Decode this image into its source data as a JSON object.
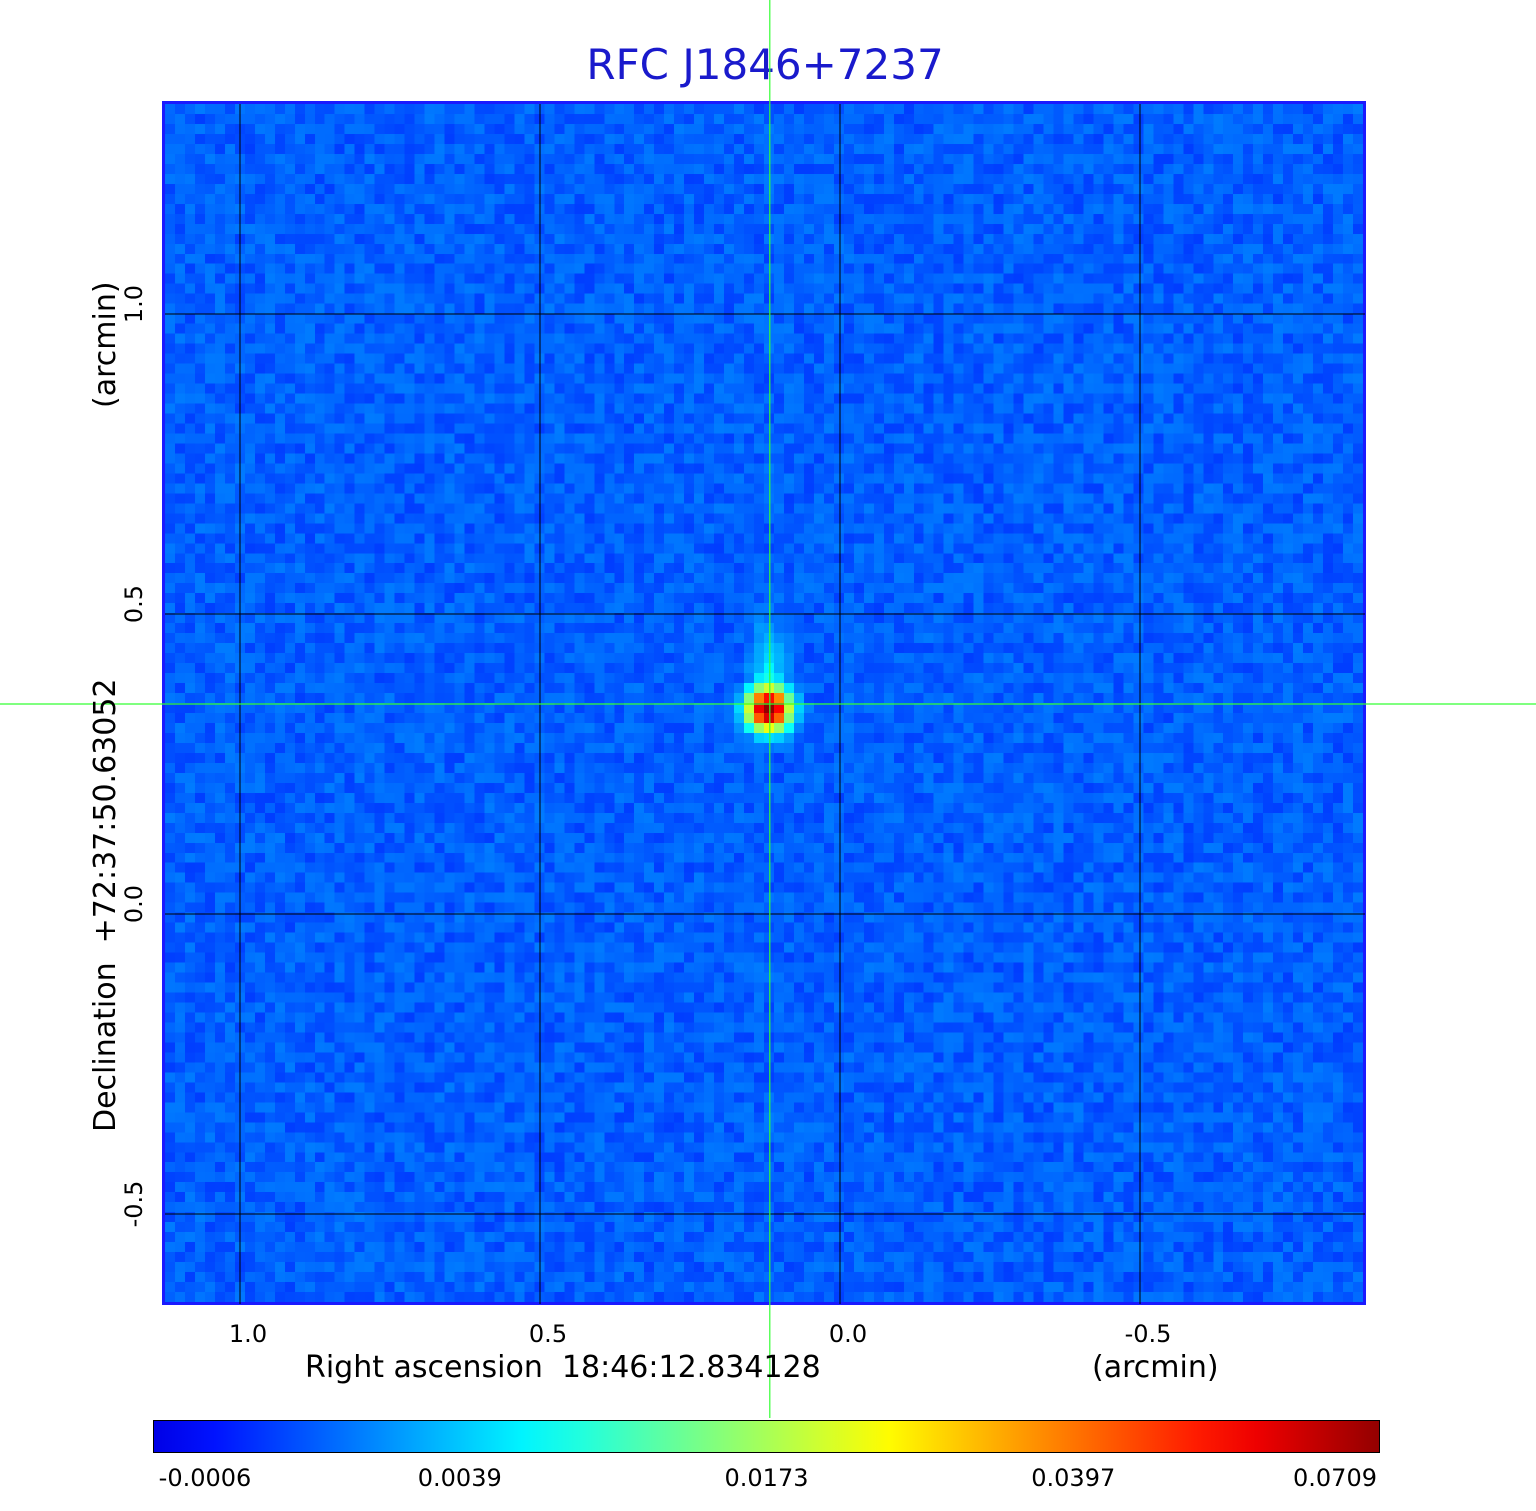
{
  "chart_data": {
    "type": "heatmap",
    "title": "RFC J1846+7237",
    "xlabel": "Right ascension  18:46:12.834128",
    "xunit": "(arcmin)",
    "ylabel": "Declination  +72:37:50.63052",
    "yunit": "(arcmin)",
    "xlim": [
      1.125,
      -0.875
    ],
    "ylim": [
      -0.65,
      1.35
    ],
    "x_ticks": [
      1.0,
      0.5,
      0.0,
      -0.5
    ],
    "x_tick_labels": [
      "1.0",
      "0.5",
      "0.0",
      "-0.5"
    ],
    "y_ticks": [
      1.0,
      0.5,
      0.0,
      -0.5
    ],
    "y_tick_labels": [
      "1.0",
      "0.5",
      "0.0",
      "-0.5"
    ],
    "grid": true,
    "crosshair": {
      "x": 0.117,
      "y": 0.35
    },
    "source_peak": {
      "x": 0.117,
      "y": 0.34,
      "value": 0.0709
    },
    "colorbar": {
      "ticks": [
        -0.0006,
        0.0039,
        0.0173,
        0.0397,
        0.0709
      ],
      "tick_labels": [
        "-0.0006",
        "0.0039",
        "0.0173",
        "0.0397",
        "0.0709"
      ],
      "colormap": "jet"
    }
  },
  "colors": {
    "title": "#1a1acc",
    "frame": "#1a1aff",
    "grid": "#000000",
    "crosshair": "#33ff33"
  }
}
